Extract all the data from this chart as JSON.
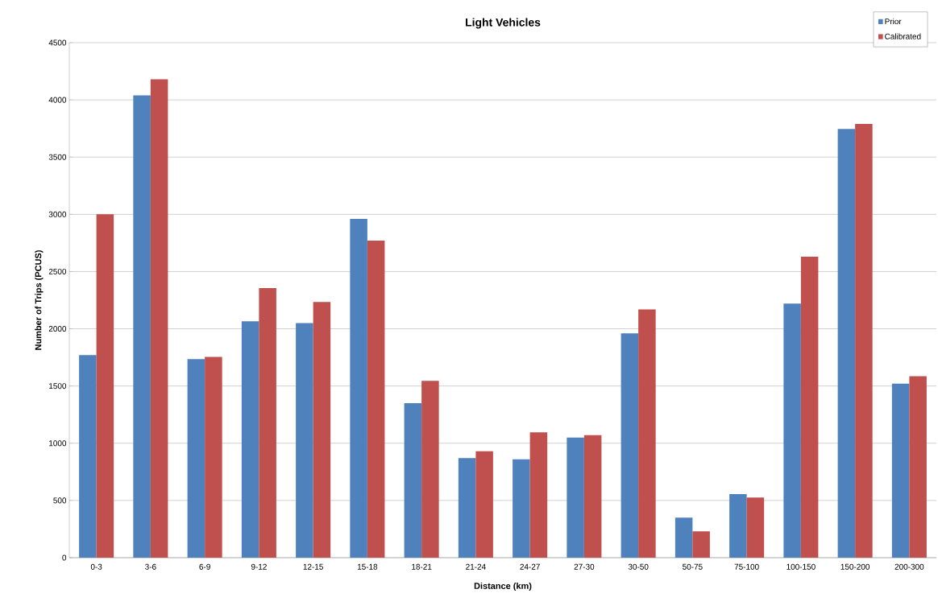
{
  "chart_data": {
    "type": "bar",
    "title": "Light Vehicles",
    "xlabel": "Distance (km)",
    "ylabel": "Number of Trips (PCUS)",
    "categories": [
      "0-3",
      "3-6",
      "6-9",
      "9-12",
      "12-15",
      "15-18",
      "18-21",
      "21-24",
      "24-27",
      "27-30",
      "30-50",
      "50-75",
      "75-100",
      "100-150",
      "150-200",
      "200-300"
    ],
    "series": [
      {
        "name": "Prior",
        "color": "#4f81bd",
        "values": [
          1770,
          4040,
          1735,
          2065,
          2050,
          2960,
          1350,
          870,
          860,
          1050,
          1960,
          350,
          555,
          2220,
          3745,
          1520
        ]
      },
      {
        "name": "Calibrated",
        "color": "#c0504d",
        "values": [
          3000,
          4180,
          1755,
          2355,
          2235,
          2770,
          1545,
          930,
          1095,
          1070,
          2170,
          230,
          525,
          2630,
          3790,
          1585
        ]
      }
    ],
    "ylim": [
      0,
      4500
    ],
    "yticks": [
      0,
      500,
      1000,
      1500,
      2000,
      2500,
      3000,
      3500,
      4000,
      4500
    ],
    "grid": "y",
    "legend": "top right"
  }
}
